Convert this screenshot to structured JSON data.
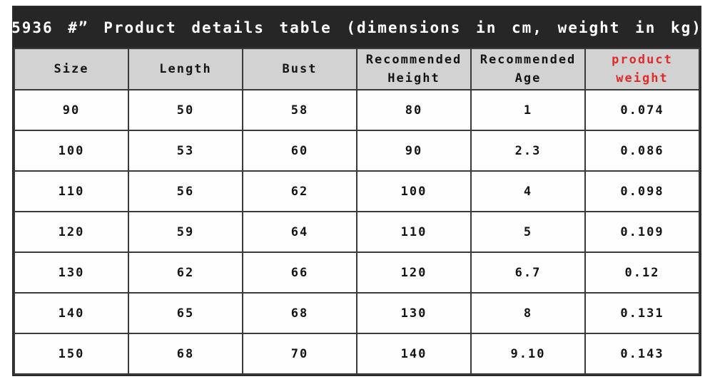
{
  "title": "5936 #” Product details table (dimensions in cm, weight in kg)",
  "table": {
    "columns": [
      "Size",
      "Length",
      "Bust",
      "Recommended Height",
      "Recommended Age",
      "product weight"
    ],
    "rows": [
      [
        "90",
        "50",
        "58",
        "80",
        "1",
        "0.074"
      ],
      [
        "100",
        "53",
        "60",
        "90",
        "2.3",
        "0.086"
      ],
      [
        "110",
        "56",
        "62",
        "100",
        "4",
        "0.098"
      ],
      [
        "120",
        "59",
        "64",
        "110",
        "5",
        "0.109"
      ],
      [
        "130",
        "62",
        "66",
        "120",
        "6.7",
        "0.12"
      ],
      [
        "140",
        "65",
        "68",
        "130",
        "8",
        "0.131"
      ],
      [
        "150",
        "68",
        "70",
        "140",
        "9.10",
        "0.143"
      ]
    ]
  },
  "colors": {
    "title_bg": "#262626",
    "title_text": "#ffffff",
    "header_bg": "#d2d2d2",
    "header_text": "#141414",
    "accent_red": "#e02b2b",
    "border": "#3a3a3a",
    "cell_bg": "#fefefe"
  }
}
